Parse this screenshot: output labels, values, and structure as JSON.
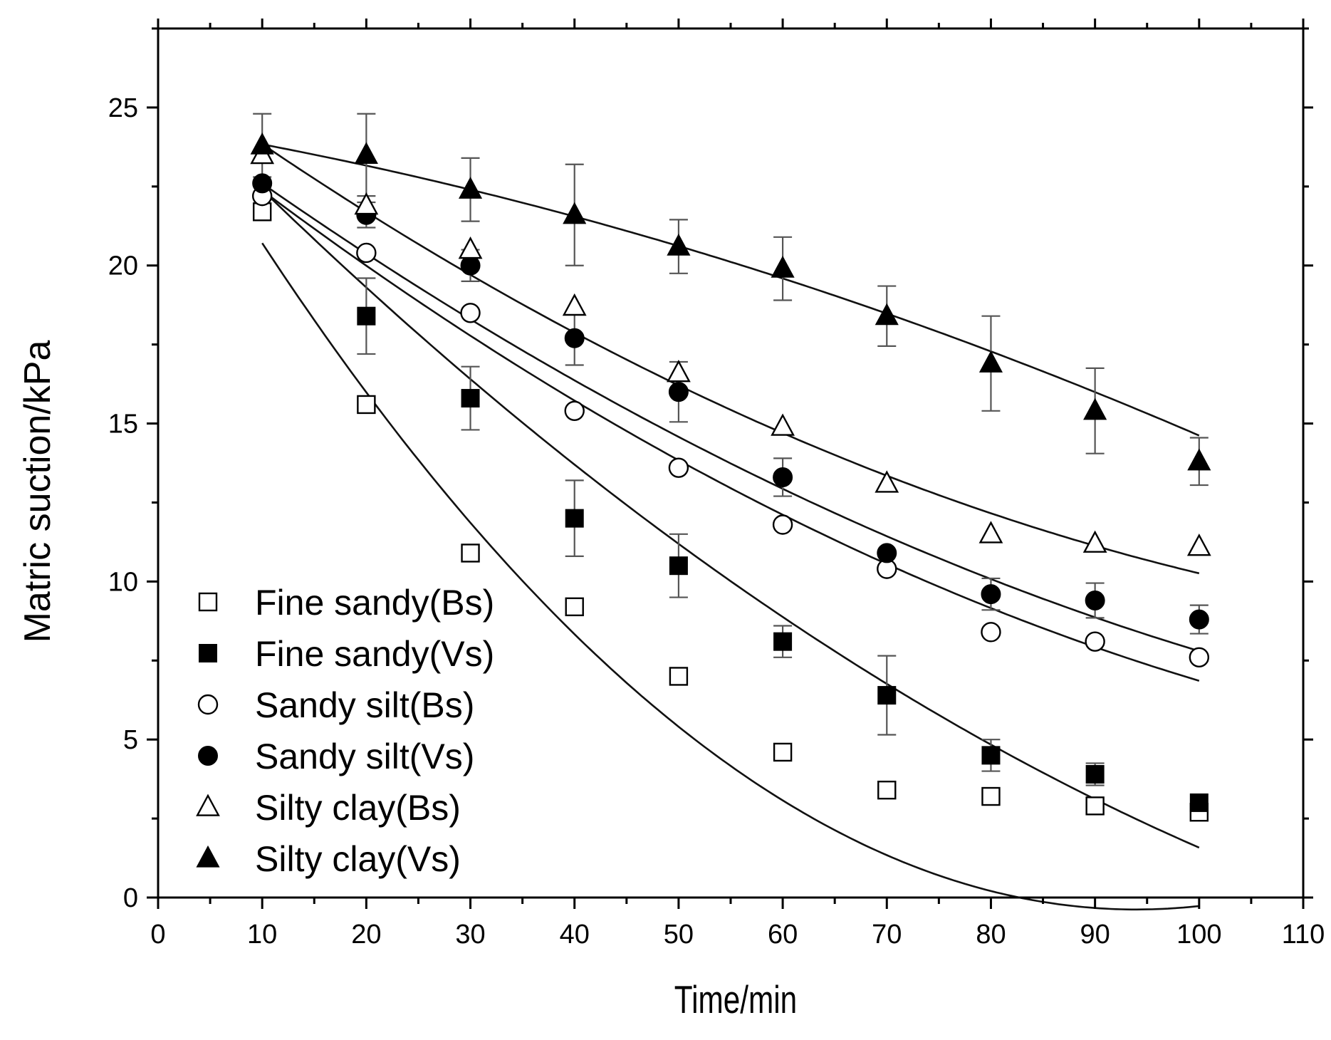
{
  "chart_data": {
    "type": "scatter",
    "xlabel": "Time/min",
    "ylabel": "Matric suction/kPa",
    "xlim": [
      0,
      110
    ],
    "ylim": [
      0,
      27.5
    ],
    "xticks": [
      0,
      10,
      20,
      30,
      40,
      50,
      60,
      70,
      80,
      90,
      100,
      110
    ],
    "xtick_labels": [
      "0",
      "10",
      "20",
      "30",
      "40",
      "50",
      "60",
      "70",
      "80",
      "90",
      "100",
      "110"
    ],
    "yticks": [
      0,
      5,
      10,
      15,
      20,
      25
    ],
    "ytick_labels": [
      "0",
      "5",
      "10",
      "15",
      "20",
      "25"
    ],
    "legend_position": "bottom-left",
    "grid": false,
    "x": [
      10,
      20,
      30,
      40,
      50,
      60,
      70,
      80,
      90,
      100
    ],
    "series": [
      {
        "name": "Fine sandy(Bs)",
        "marker": "square-open",
        "values": [
          21.7,
          15.6,
          10.9,
          9.2,
          7.0,
          4.6,
          3.4,
          3.2,
          2.9,
          2.7
        ],
        "errors": [
          null,
          null,
          null,
          null,
          null,
          null,
          null,
          null,
          null,
          null
        ],
        "fit": [
          0.00299,
          -0.562,
          26.03
        ]
      },
      {
        "name": "Fine sandy(Vs)",
        "marker": "square-filled",
        "values": [
          null,
          18.4,
          15.8,
          12.0,
          10.5,
          8.1,
          6.4,
          4.5,
          3.9,
          3.0
        ],
        "errors": [
          null,
          1.2,
          1.0,
          1.2,
          1.0,
          0.5,
          1.25,
          0.5,
          0.35,
          null
        ],
        "fit": [
          0.000977,
          -0.3388,
          25.69
        ]
      },
      {
        "name": "Sandy silt(Bs)",
        "marker": "circle-open",
        "values": [
          22.2,
          20.4,
          18.5,
          15.4,
          13.6,
          11.8,
          10.4,
          8.4,
          8.1,
          7.6
        ],
        "errors": [
          null,
          null,
          null,
          null,
          null,
          null,
          null,
          null,
          null,
          null
        ],
        "fit": [
          0.000821,
          -0.2627,
          24.92
        ]
      },
      {
        "name": "Sandy silt(Vs)",
        "marker": "circle-filled",
        "values": [
          22.6,
          21.6,
          20.0,
          17.7,
          16.0,
          13.3,
          10.9,
          9.6,
          9.4,
          8.8
        ],
        "errors": [
          null,
          0.4,
          0.5,
          0.85,
          0.95,
          0.6,
          null,
          0.5,
          0.55,
          0.45
        ],
        "fit": [
          0.000721,
          -0.2437,
          24.96
        ]
      },
      {
        "name": "Silty clay(Bs)",
        "marker": "triangle-open",
        "values": [
          23.5,
          21.9,
          20.5,
          18.7,
          16.6,
          14.9,
          13.1,
          11.5,
          11.2,
          11.1
        ],
        "errors": [
          null,
          null,
          null,
          null,
          null,
          null,
          null,
          null,
          null,
          null
        ],
        "fit": [
          0.000799,
          -0.2388,
          26.15
        ]
      },
      {
        "name": "Silty clay(Vs)",
        "marker": "triangle-filled",
        "values": [
          23.8,
          23.5,
          22.4,
          21.6,
          20.6,
          19.9,
          18.4,
          16.9,
          15.4,
          13.8
        ],
        "errors": [
          1.0,
          1.3,
          1.0,
          1.6,
          0.85,
          1.0,
          0.95,
          1.5,
          1.35,
          0.75
        ],
        "fit": [
          -0.000438,
          -0.0542,
          24.42
        ]
      }
    ]
  }
}
